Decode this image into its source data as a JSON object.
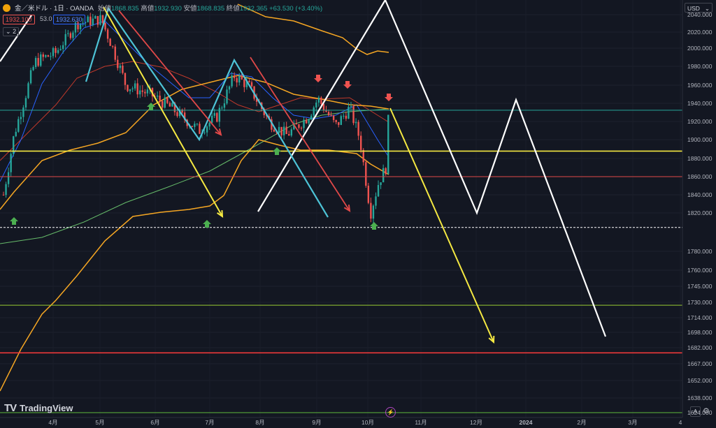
{
  "header": {
    "symbol": "金／米ドル · 1日 · OANDA",
    "open_label": "始値",
    "open": "1868.835",
    "high_label": "高値",
    "high": "1932.930",
    "low_label": "安値",
    "low": "1868.835",
    "close_label": "終値",
    "close": "1932.365",
    "change": "+63.530 (+3.40%)",
    "sell_price": "1932.100",
    "spread": "53.0",
    "buy_price": "1932.630",
    "indicators_count": "2",
    "currency": "USD"
  },
  "footer": {
    "brand": "TradingView",
    "auto_label": "A"
  },
  "colors": {
    "background": "#131722",
    "up": "#26a69a",
    "down": "#ef5350",
    "yellow": "#f5e942",
    "cyan": "#4dc3d6",
    "orange": "#f5a623",
    "red_line": "#e04848"
  },
  "chart_data": {
    "type": "candlestick",
    "instrument": "金／米ドル",
    "timeframe": "1日",
    "x_labels": [
      "4月",
      "5月",
      "6月",
      "7月",
      "8月",
      "9月",
      "10月",
      "11月",
      "12月",
      "2024",
      "2月",
      "3月",
      "4"
    ],
    "y_ticks": [
      2040,
      2020,
      2000,
      1980,
      1960,
      1940,
      1920,
      1900,
      1880,
      1860,
      1840,
      1820,
      1780,
      1760,
      1745,
      1730,
      1714,
      1698,
      1682,
      1667,
      1652,
      1638,
      1624
    ],
    "horizontal_levels": [
      {
        "price": 1932.365,
        "label": "1932.365",
        "color": "#26a69a"
      },
      {
        "price": 1887.86,
        "label": "1887.860",
        "color": "#f5e942"
      },
      {
        "price": 1860,
        "label": "",
        "color": "#e04848"
      },
      {
        "price": 1805.211,
        "label": "1805.211",
        "color": "#ffffff"
      },
      {
        "price": 1727,
        "label": "",
        "color": "#9acd32"
      },
      {
        "price": 1677.189,
        "label": "1677.189",
        "color": "#ff3b3b"
      },
      {
        "price": 1621,
        "label": "",
        "color": "#5fb83c"
      }
    ],
    "ohlc_latest": {
      "open": 1868.835,
      "high": 1932.93,
      "low": 1868.835,
      "close": 1932.365,
      "change": 63.53,
      "change_pct": 3.4
    }
  }
}
